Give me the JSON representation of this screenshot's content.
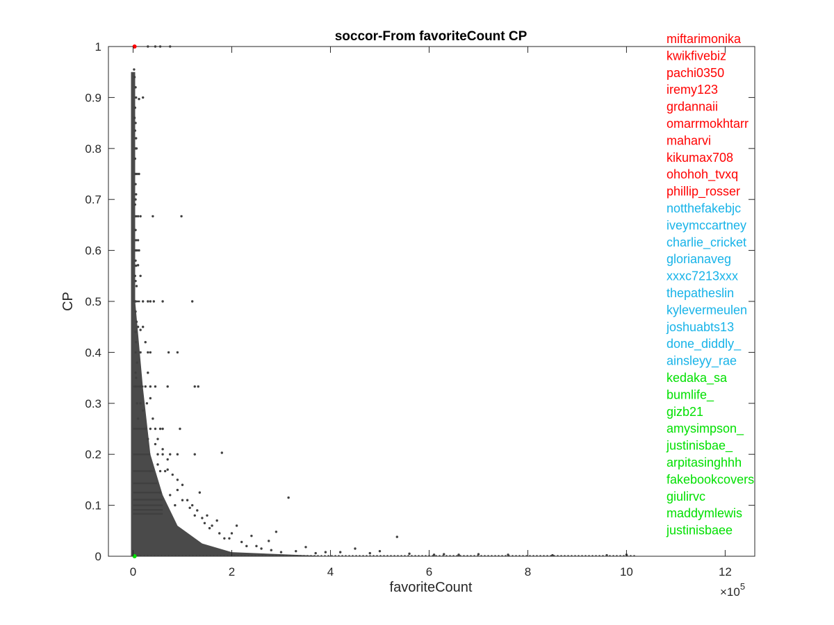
{
  "chart_data": {
    "type": "scatter",
    "title": "soccor-From favoriteCount CP",
    "xlabel": "favoriteCount",
    "ylabel": "CP",
    "x_multiplier_label": "×10",
    "x_multiplier_exp": "5",
    "xlim": [
      -0.5,
      12.6
    ],
    "ylim": [
      0,
      1
    ],
    "x_ticks": [
      0,
      2,
      4,
      6,
      8,
      10,
      12
    ],
    "y_ticks": [
      0,
      0.1,
      0.2,
      0.3,
      0.4,
      0.5,
      0.6,
      0.7,
      0.8,
      0.9,
      1
    ],
    "x_tick_labels": [
      "0",
      "2",
      "4",
      "6",
      "8",
      "10",
      "12"
    ],
    "y_tick_labels": [
      "0",
      "0.1",
      "0.2",
      "0.3",
      "0.4",
      "0.5",
      "0.6",
      "0.7",
      "0.8",
      "0.9",
      "1"
    ],
    "grid": false,
    "point_color": "#404040",
    "colors": {
      "red": "#ff0000",
      "cyan": "#17b3e8",
      "green": "#00e000"
    },
    "series": [
      {
        "color": "#404040",
        "points": [
          [
            0.02,
            0.955
          ],
          [
            0.03,
            0.94
          ],
          [
            0.05,
            0.92
          ],
          [
            0.06,
            0.9
          ],
          [
            0.12,
            0.897
          ],
          [
            0.04,
            0.88
          ],
          [
            0.03,
            0.86
          ],
          [
            0.05,
            0.85
          ],
          [
            0.04,
            0.835
          ],
          [
            0.06,
            0.82
          ],
          [
            0.05,
            0.8
          ],
          [
            0.07,
            0.8
          ],
          [
            0.04,
            0.78
          ],
          [
            0.05,
            0.75
          ],
          [
            0.08,
            0.75
          ],
          [
            0.12,
            0.75
          ],
          [
            0.05,
            0.73
          ],
          [
            0.06,
            0.71
          ],
          [
            0.05,
            0.7
          ],
          [
            0.04,
            0.69
          ],
          [
            0.06,
            0.667
          ],
          [
            0.1,
            0.667
          ],
          [
            0.15,
            0.667
          ],
          [
            0.4,
            0.667
          ],
          [
            0.98,
            0.667
          ],
          [
            0.05,
            0.64
          ],
          [
            0.06,
            0.62
          ],
          [
            0.05,
            0.6
          ],
          [
            0.08,
            0.6
          ],
          [
            0.12,
            0.6
          ],
          [
            0.05,
            0.58
          ],
          [
            0.06,
            0.57
          ],
          [
            0.1,
            0.571
          ],
          [
            0.04,
            0.55
          ],
          [
            0.05,
            0.54
          ],
          [
            0.07,
            0.53
          ],
          [
            0.05,
            0.5
          ],
          [
            0.2,
            0.5
          ],
          [
            0.3,
            0.5
          ],
          [
            0.35,
            0.5
          ],
          [
            0.42,
            0.5
          ],
          [
            0.6,
            0.5
          ],
          [
            1.2,
            0.5
          ],
          [
            0.05,
            0.48
          ],
          [
            0.07,
            0.46
          ],
          [
            0.1,
            0.45
          ],
          [
            0.05,
            0.44
          ],
          [
            0.15,
            0.444
          ],
          [
            0.06,
            0.42
          ],
          [
            0.05,
            0.4
          ],
          [
            0.15,
            0.4
          ],
          [
            0.3,
            0.4
          ],
          [
            0.35,
            0.4
          ],
          [
            0.72,
            0.4
          ],
          [
            0.9,
            0.4
          ],
          [
            0.08,
            0.38
          ],
          [
            0.05,
            0.36
          ],
          [
            0.06,
            0.35
          ],
          [
            0.05,
            0.333
          ],
          [
            0.15,
            0.333
          ],
          [
            0.25,
            0.333
          ],
          [
            0.35,
            0.333
          ],
          [
            0.45,
            0.333
          ],
          [
            0.7,
            0.333
          ],
          [
            1.25,
            0.333
          ],
          [
            1.32,
            0.333
          ],
          [
            0.08,
            0.3
          ],
          [
            0.15,
            0.3
          ],
          [
            0.28,
            0.3
          ],
          [
            0.2,
            0.286
          ],
          [
            0.1,
            0.27
          ],
          [
            0.25,
            0.25
          ],
          [
            0.35,
            0.25
          ],
          [
            0.45,
            0.25
          ],
          [
            0.55,
            0.25
          ],
          [
            0.6,
            0.25
          ],
          [
            0.95,
            0.25
          ],
          [
            0.3,
            0.23
          ],
          [
            0.45,
            0.22
          ],
          [
            0.5,
            0.2
          ],
          [
            0.6,
            0.2
          ],
          [
            0.75,
            0.2
          ],
          [
            0.9,
            0.2
          ],
          [
            1.25,
            0.2
          ],
          [
            1.8,
            0.203
          ],
          [
            0.5,
            0.18
          ],
          [
            0.7,
            0.17
          ],
          [
            0.35,
            0.167
          ],
          [
            0.55,
            0.167
          ],
          [
            0.65,
            0.167
          ],
          [
            0.9,
            0.15
          ],
          [
            1.0,
            0.14
          ],
          [
            1.35,
            0.125
          ],
          [
            0.55,
            0.125
          ],
          [
            0.75,
            0.12
          ],
          [
            1.1,
            0.11
          ],
          [
            3.15,
            0.115
          ],
          [
            1.2,
            0.1
          ],
          [
            0.85,
            0.1
          ],
          [
            1.3,
            0.09
          ],
          [
            1.5,
            0.08
          ],
          [
            1.4,
            0.075
          ],
          [
            1.7,
            0.07
          ],
          [
            2.1,
            0.06
          ],
          [
            1.6,
            0.06
          ],
          [
            2.9,
            0.048
          ],
          [
            2.0,
            0.045
          ],
          [
            2.4,
            0.04
          ],
          [
            5.35,
            0.038
          ],
          [
            2.75,
            0.03
          ],
          [
            1.85,
            0.035
          ],
          [
            2.5,
            0.02
          ],
          [
            3.5,
            0.018
          ],
          [
            4.5,
            0.015
          ],
          [
            5.0,
            0.01
          ],
          [
            4.2,
            0.008
          ],
          [
            3.0,
            0.008
          ],
          [
            3.7,
            0.006
          ],
          [
            6.1,
            0.003
          ],
          [
            6.6,
            0.003
          ],
          [
            7.6,
            0.003
          ],
          [
            8.5,
            0.002
          ],
          [
            9.6,
            0.002
          ],
          [
            10.0,
            0.003
          ],
          [
            0.2,
            0.9
          ],
          [
            0.1,
            0.62
          ],
          [
            0.15,
            0.55
          ],
          [
            0.2,
            0.45
          ],
          [
            0.25,
            0.42
          ],
          [
            0.3,
            0.36
          ],
          [
            0.35,
            0.31
          ],
          [
            0.4,
            0.27
          ],
          [
            0.5,
            0.23
          ],
          [
            0.6,
            0.21
          ],
          [
            0.7,
            0.19
          ],
          [
            0.8,
            0.16
          ],
          [
            0.9,
            0.13
          ],
          [
            1.0,
            0.11
          ],
          [
            1.15,
            0.095
          ],
          [
            1.25,
            0.08
          ],
          [
            1.45,
            0.065
          ],
          [
            1.55,
            0.055
          ],
          [
            1.75,
            0.045
          ],
          [
            1.95,
            0.035
          ],
          [
            2.2,
            0.028
          ],
          [
            2.3,
            0.02
          ],
          [
            2.6,
            0.015
          ],
          [
            2.8,
            0.012
          ],
          [
            3.3,
            0.01
          ],
          [
            3.9,
            0.008
          ],
          [
            4.8,
            0.006
          ],
          [
            5.6,
            0.005
          ],
          [
            6.3,
            0.004
          ],
          [
            7.0,
            0.004
          ],
          [
            0.45,
            1.0
          ],
          [
            0.55,
            1.0
          ],
          [
            0.75,
            1.0
          ],
          [
            0.3,
            1.0
          ]
        ]
      }
    ],
    "highlight_top": {
      "x": 0.03,
      "y": 1.0,
      "color": "#ff0000"
    },
    "highlight_bottom": {
      "x": 0.03,
      "y": 0.0,
      "color": "#00e000"
    },
    "legend_placement": "right",
    "legend": [
      {
        "name": "miftarimonika",
        "color": "#ff0000"
      },
      {
        "name": "kwikfivebiz",
        "color": "#ff0000"
      },
      {
        "name": "pachi0350",
        "color": "#ff0000"
      },
      {
        "name": "iremy123",
        "color": "#ff0000"
      },
      {
        "name": "grdannaii",
        "color": "#ff0000"
      },
      {
        "name": "omarrmokhtarr",
        "color": "#ff0000"
      },
      {
        "name": "maharvi",
        "color": "#ff0000"
      },
      {
        "name": "kikumax708",
        "color": "#ff0000"
      },
      {
        "name": "ohohoh_tvxq",
        "color": "#ff0000"
      },
      {
        "name": "phillip_rosser",
        "color": "#ff0000"
      },
      {
        "name": "notthefakebjc",
        "color": "#17b3e8"
      },
      {
        "name": "iveymccartney",
        "color": "#17b3e8"
      },
      {
        "name": "charlie_cricket",
        "color": "#17b3e8"
      },
      {
        "name": "glorianaveg",
        "color": "#17b3e8"
      },
      {
        "name": "xxxc7213xxx",
        "color": "#17b3e8"
      },
      {
        "name": "thepatheslin",
        "color": "#17b3e8"
      },
      {
        "name": "kylevermeulen",
        "color": "#17b3e8"
      },
      {
        "name": "joshuabts13",
        "color": "#17b3e8"
      },
      {
        "name": "done_diddly_",
        "color": "#17b3e8"
      },
      {
        "name": "ainsleyy_rae",
        "color": "#17b3e8"
      },
      {
        "name": "kedaka_sa",
        "color": "#00e000"
      },
      {
        "name": "bumlife_",
        "color": "#00e000"
      },
      {
        "name": "gizb21",
        "color": "#00e000"
      },
      {
        "name": "amysimpson_",
        "color": "#00e000"
      },
      {
        "name": "justinisbae_",
        "color": "#00e000"
      },
      {
        "name": "arpitasinghhh",
        "color": "#00e000"
      },
      {
        "name": "fakebookcovers",
        "color": "#00e000"
      },
      {
        "name": "giulirvc",
        "color": "#00e000"
      },
      {
        "name": "maddymlewis",
        "color": "#00e000"
      },
      {
        "name": "justinisbaee",
        "color": "#00e000"
      }
    ]
  }
}
